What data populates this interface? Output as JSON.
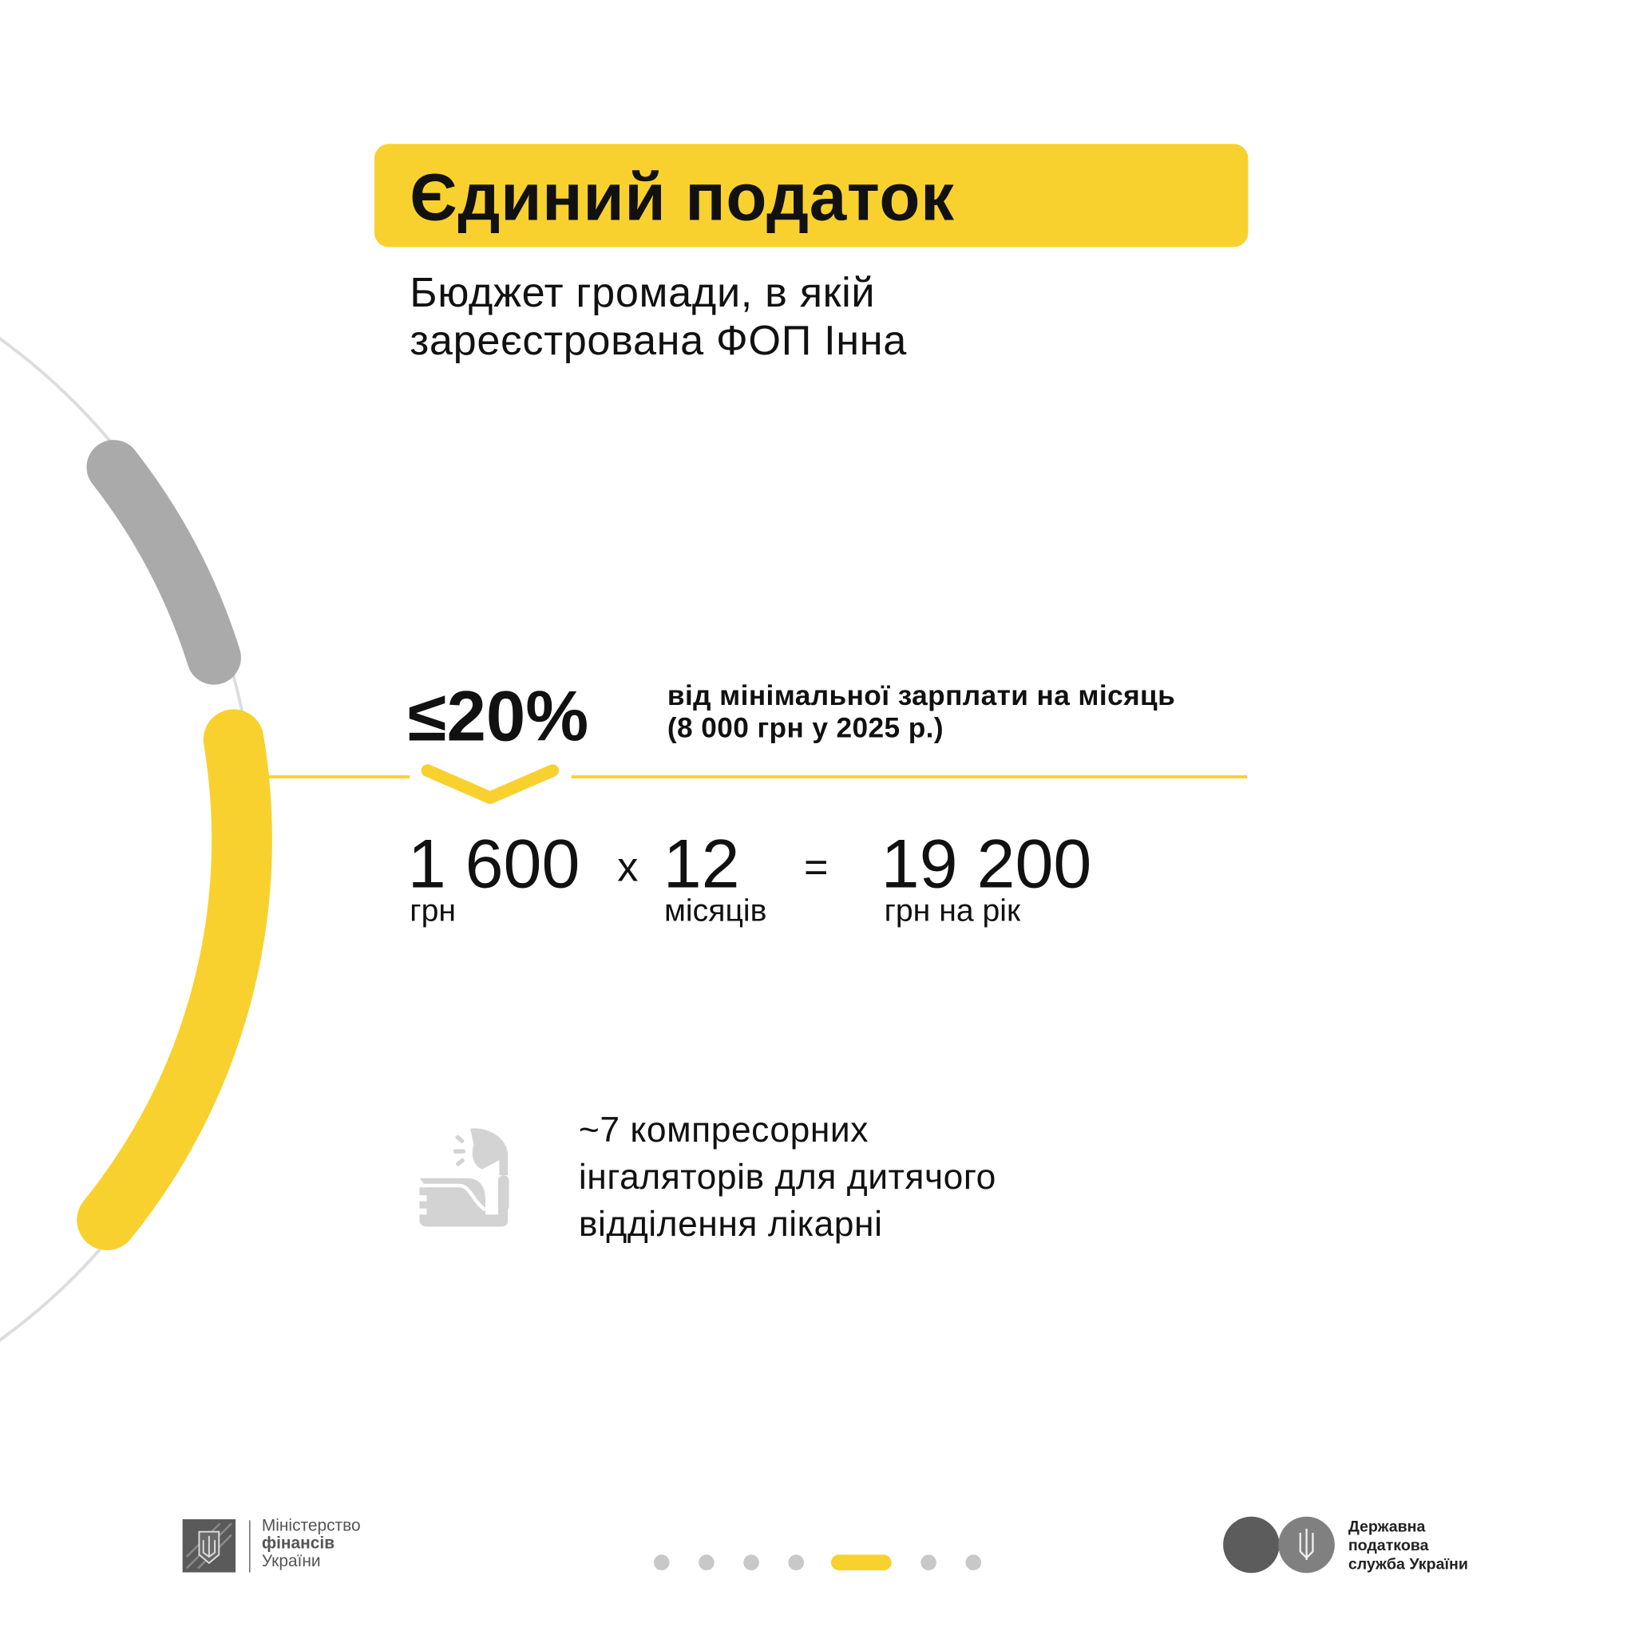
{
  "title": "Єдиний податок",
  "subtitle": [
    "Бюджет громади, в якій",
    "зареєстрована ФОП Інна"
  ],
  "rate": {
    "value": "≤20%",
    "note": [
      "від мінімальної зарплати на місяць",
      "(8 000 грн у 2025 р.)"
    ]
  },
  "calculation": {
    "monthly": {
      "value": "1 600",
      "unit": "грн"
    },
    "times": "x",
    "months": {
      "value": "12",
      "unit": "місяців"
    },
    "equals": "=",
    "total": {
      "value": "19 200",
      "unit": "грн на рік"
    }
  },
  "result": {
    "icon": "inhaler-icon",
    "text": [
      "~7 компресорних",
      "інгаляторів для дитячого",
      "відділення лікарні"
    ]
  },
  "footer": {
    "ministry": [
      "Міністерство",
      "фінансів",
      "України"
    ],
    "tax_service": [
      "Державна",
      "податкова",
      "служба України"
    ],
    "pagination": {
      "total": 7,
      "active": 5
    }
  },
  "colors": {
    "accent": "#F9D12E",
    "gray_arc": "#AAAAAA",
    "thin_arc": "#DDDDDD",
    "icon": "#D3D3D3"
  }
}
